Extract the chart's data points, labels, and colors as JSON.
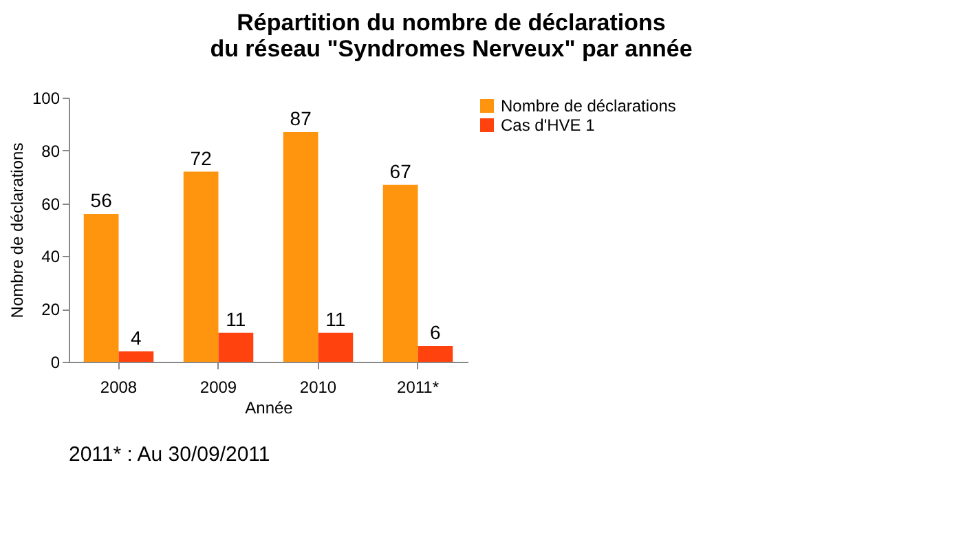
{
  "chart_data": {
    "type": "bar",
    "title": "Répartition du nombre de déclarations\ndu réseau \"Syndromes Nerveux\" par année",
    "xlabel": "Année",
    "ylabel": "Nombre de déclarations",
    "categories": [
      "2008",
      "2009",
      "2010",
      "2011*"
    ],
    "series": [
      {
        "name": "Nombre de déclarations",
        "color": "#ff950e",
        "values": [
          56,
          72,
          87,
          67
        ]
      },
      {
        "name": "Cas d'HVE 1",
        "color": "#ff420e",
        "values": [
          4,
          11,
          11,
          6
        ]
      }
    ],
    "ylim": [
      0,
      100
    ],
    "yticks": [
      0,
      20,
      40,
      60,
      80,
      100
    ],
    "grid": false,
    "legend": "right",
    "data_labels": true,
    "annotations": [
      "2011* : Au 30/09/2011"
    ]
  }
}
